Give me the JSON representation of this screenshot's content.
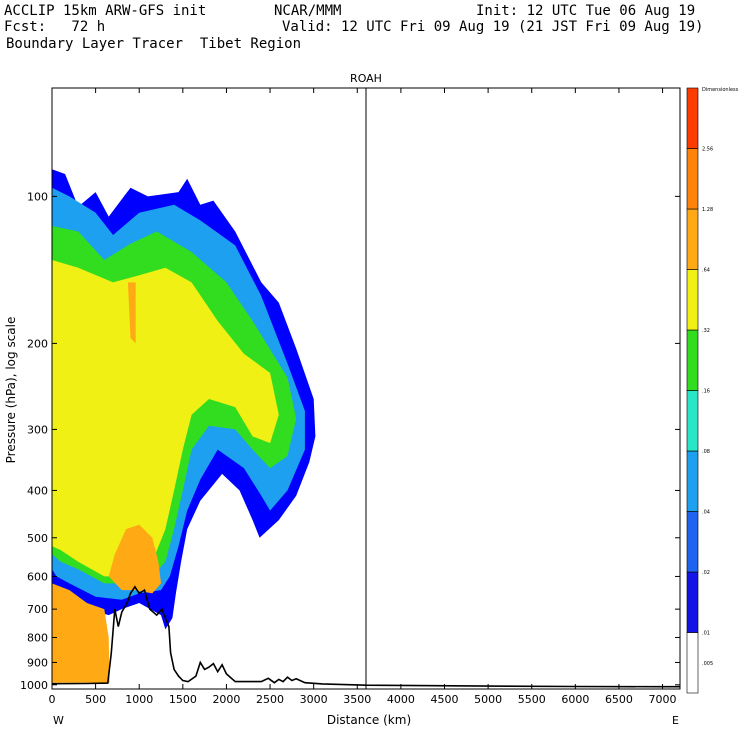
{
  "header": {
    "model": "ACCLIP 15km ARW-GFS init",
    "org": "NCAR/MMM",
    "init": "Init: 12 UTC Tue 06 Aug 19",
    "fcst": "Fcst:   72 h",
    "valid": "Valid: 12 UTC Fri 09 Aug 19 (21 JST Fri 09 Aug 19)",
    "product": "Boundary Layer Tracer  Tibet Region"
  },
  "chart_data": {
    "type": "heatmap",
    "title": "ROAH",
    "xlabel": "Distance (km)",
    "ylabel": "Pressure (hPa), log scale",
    "xlim": [
      0,
      7200
    ],
    "ylim": [
      1020,
      60
    ],
    "y_scale": "log",
    "x_ticks": [
      0,
      500,
      1000,
      1500,
      2000,
      2500,
      3000,
      3500,
      4000,
      4500,
      5000,
      5500,
      6000,
      6500,
      7000
    ],
    "x_tick_labels": [
      "0",
      "500",
      "1000",
      "1500",
      "2000",
      "2500",
      "3000",
      "3500",
      "4000",
      "4500",
      "5000",
      "5500",
      "6000",
      "6500",
      "7000"
    ],
    "y_ticks": [
      100,
      200,
      300,
      400,
      500,
      600,
      700,
      800,
      900,
      1000
    ],
    "y_tick_labels": [
      "100",
      "200",
      "300",
      "400",
      "500",
      "600",
      "700",
      "800",
      "900",
      "1000"
    ],
    "x_end_labels": {
      "left": "W",
      "right": "E"
    },
    "marker_line_x_km": 3600,
    "colorbar": {
      "label": "Dimensionless",
      "levels": [
        ".005",
        ".01",
        ".02",
        ".04",
        ".08",
        ".16",
        ".32",
        ".64",
        "1.28",
        "2.56"
      ],
      "colors": [
        "#ffffff",
        "#1414e6",
        "#1e64f0",
        "#1ea0f0",
        "#28e6c8",
        "#32dc1e",
        "#f0f014",
        "#ffaa14",
        "#ff820a",
        "#ff3c00"
      ]
    },
    "tracer_colors": {
      "lt_0.01": "#0000ff",
      "0.01": "#1414e6",
      "0.02": "#1e64f0",
      "0.04": "#1ea0f0",
      "0.08": "#28e6c8",
      "0.16": "#32dc1e",
      "0.32": "#f0f014",
      "0.64": "#ffaa14"
    },
    "terrain_profile": {
      "x_km": [
        0,
        400,
        640,
        680,
        720,
        760,
        800,
        860,
        900,
        950,
        1000,
        1060,
        1120,
        1200,
        1260,
        1300,
        1340,
        1360,
        1400,
        1450,
        1500,
        1560,
        1650,
        1700,
        1750,
        1800,
        1850,
        1900,
        1950,
        2000,
        2100,
        2400,
        2480,
        2550,
        2600,
        2650,
        2700,
        2750,
        2800,
        2900,
        3100,
        3600,
        4200,
        5000,
        6000,
        7000,
        7200
      ],
      "p_hpa": [
        995,
        994,
        992,
        860,
        700,
        760,
        710,
        680,
        650,
        630,
        650,
        640,
        700,
        720,
        700,
        730,
        760,
        860,
        930,
        960,
        980,
        985,
        960,
        900,
        930,
        920,
        905,
        940,
        910,
        950,
        985,
        985,
        970,
        990,
        975,
        985,
        965,
        980,
        972,
        990,
        996,
        1002,
        1004,
        1006,
        1008,
        1009,
        1009
      ]
    },
    "tracer_plume": [
      {
        "level": "lt_0.01",
        "points": [
          [
            0,
            88
          ],
          [
            150,
            90
          ],
          [
            300,
            105
          ],
          [
            500,
            98
          ],
          [
            650,
            110
          ],
          [
            900,
            96
          ],
          [
            1100,
            100
          ],
          [
            1450,
            98
          ],
          [
            1550,
            92
          ],
          [
            1700,
            104
          ],
          [
            1850,
            102
          ],
          [
            2100,
            118
          ],
          [
            2400,
            150
          ],
          [
            2600,
            165
          ],
          [
            2800,
            205
          ],
          [
            3000,
            260
          ],
          [
            3020,
            310
          ],
          [
            2950,
            350
          ],
          [
            2800,
            410
          ],
          [
            2600,
            460
          ],
          [
            2380,
            500
          ],
          [
            2300,
            460
          ],
          [
            2150,
            400
          ],
          [
            1950,
            370
          ],
          [
            1700,
            420
          ],
          [
            1550,
            480
          ],
          [
            1480,
            560
          ],
          [
            1420,
            650
          ],
          [
            1380,
            730
          ],
          [
            1300,
            770
          ],
          [
            1250,
            720
          ],
          [
            1000,
            680
          ],
          [
            800,
            700
          ],
          [
            650,
            720
          ],
          [
            400,
            700
          ],
          [
            200,
            660
          ],
          [
            60,
            640
          ],
          [
            0,
            620
          ]
        ]
      },
      {
        "level": "0.04",
        "points": [
          [
            0,
            96
          ],
          [
            200,
            100
          ],
          [
            500,
            108
          ],
          [
            700,
            120
          ],
          [
            1000,
            108
          ],
          [
            1400,
            104
          ],
          [
            1700,
            112
          ],
          [
            2100,
            126
          ],
          [
            2400,
            160
          ],
          [
            2700,
            220
          ],
          [
            2900,
            275
          ],
          [
            2900,
            330
          ],
          [
            2700,
            400
          ],
          [
            2500,
            440
          ],
          [
            2400,
            410
          ],
          [
            2200,
            360
          ],
          [
            1900,
            330
          ],
          [
            1700,
            380
          ],
          [
            1550,
            440
          ],
          [
            1450,
            520
          ],
          [
            1350,
            600
          ],
          [
            1250,
            640
          ],
          [
            1000,
            650
          ],
          [
            800,
            670
          ],
          [
            500,
            660
          ],
          [
            200,
            620
          ],
          [
            50,
            600
          ],
          [
            0,
            580
          ]
        ]
      },
      {
        "level": "0.16",
        "points": [
          [
            0,
            115
          ],
          [
            300,
            118
          ],
          [
            600,
            135
          ],
          [
            900,
            125
          ],
          [
            1200,
            118
          ],
          [
            1600,
            130
          ],
          [
            2000,
            150
          ],
          [
            2300,
            180
          ],
          [
            2700,
            235
          ],
          [
            2800,
            285
          ],
          [
            2700,
            340
          ],
          [
            2500,
            360
          ],
          [
            2300,
            330
          ],
          [
            2100,
            300
          ],
          [
            1800,
            295
          ],
          [
            1600,
            330
          ],
          [
            1500,
            400
          ],
          [
            1400,
            480
          ],
          [
            1300,
            560
          ],
          [
            1150,
            600
          ],
          [
            900,
            620
          ],
          [
            600,
            620
          ],
          [
            300,
            580
          ],
          [
            100,
            560
          ],
          [
            0,
            540
          ]
        ]
      },
      {
        "level": "0.32",
        "points": [
          [
            0,
            135
          ],
          [
            300,
            140
          ],
          [
            700,
            150
          ],
          [
            1000,
            145
          ],
          [
            1300,
            140
          ],
          [
            1600,
            150
          ],
          [
            1900,
            180
          ],
          [
            2200,
            210
          ],
          [
            2500,
            230
          ],
          [
            2600,
            280
          ],
          [
            2500,
            320
          ],
          [
            2300,
            310
          ],
          [
            2100,
            270
          ],
          [
            1800,
            260
          ],
          [
            1600,
            280
          ],
          [
            1500,
            330
          ],
          [
            1400,
            400
          ],
          [
            1300,
            480
          ],
          [
            1150,
            560
          ],
          [
            900,
            600
          ],
          [
            600,
            600
          ],
          [
            300,
            560
          ],
          [
            100,
            530
          ],
          [
            0,
            520
          ]
        ]
      },
      {
        "level": "0.64",
        "points": [
          [
            850,
            480
          ],
          [
            1000,
            470
          ],
          [
            1150,
            500
          ],
          [
            1220,
            560
          ],
          [
            1250,
            620
          ],
          [
            1150,
            650
          ],
          [
            950,
            640
          ],
          [
            800,
            640
          ],
          [
            650,
            600
          ],
          [
            720,
            540
          ]
        ]
      },
      {
        "level": "0.64",
        "points": [
          [
            0,
            620
          ],
          [
            200,
            640
          ],
          [
            400,
            680
          ],
          [
            600,
            700
          ],
          [
            650,
            800
          ],
          [
            660,
            990
          ],
          [
            400,
            990
          ],
          [
            0,
            990
          ]
        ]
      },
      {
        "level": "0.64",
        "points": [
          [
            870,
            150
          ],
          [
            960,
            150
          ],
          [
            960,
            200
          ],
          [
            900,
            195
          ]
        ]
      }
    ]
  }
}
